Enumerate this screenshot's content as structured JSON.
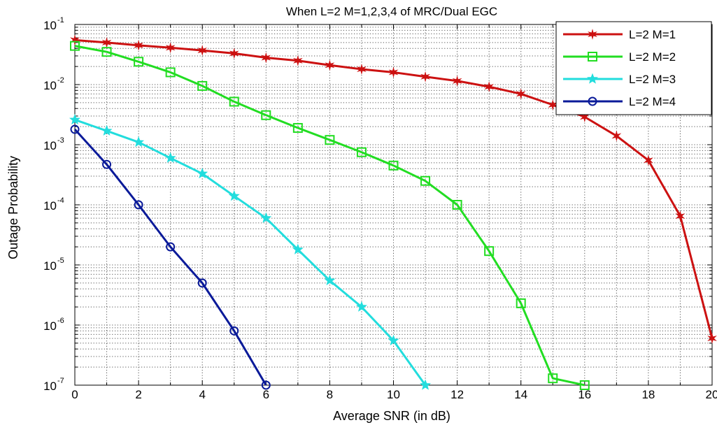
{
  "chart_data": {
    "type": "line",
    "title": "When L=2 M=1,2,3,4 of MRC/Dual EGC",
    "xlabel": "Average SNR (in dB)",
    "ylabel": "Outage Probability",
    "xlim": [
      0,
      20
    ],
    "ylim": [
      1e-07,
      0.1
    ],
    "yscale": "log",
    "grid": true,
    "legend_position": "top-right",
    "x_ticks": [
      0,
      2,
      4,
      6,
      8,
      10,
      12,
      14,
      16,
      18,
      20
    ],
    "y_ticks": [
      {
        "value": 1e-07,
        "base": "10",
        "exp": "-7"
      },
      {
        "value": 1e-06,
        "base": "10",
        "exp": "-6"
      },
      {
        "value": 1e-05,
        "base": "10",
        "exp": "-5"
      },
      {
        "value": 0.0001,
        "base": "10",
        "exp": "-4"
      },
      {
        "value": 0.001,
        "base": "10",
        "exp": "-3"
      },
      {
        "value": 0.01,
        "base": "10",
        "exp": "-2"
      },
      {
        "value": 0.1,
        "base": "10",
        "exp": "-1"
      }
    ],
    "series": [
      {
        "name": "L=2 M=1",
        "color": "#cc1111",
        "marker": "star",
        "x": [
          0,
          1,
          2,
          3,
          4,
          5,
          6,
          7,
          8,
          9,
          10,
          11,
          12,
          13,
          14,
          15,
          16,
          17,
          18,
          19,
          20
        ],
        "y": [
          0.055,
          0.05,
          0.045,
          0.041,
          0.037,
          0.033,
          0.028,
          0.025,
          0.021,
          0.018,
          0.016,
          0.0135,
          0.0115,
          0.0092,
          0.007,
          0.0046,
          0.0029,
          0.0014,
          0.00055,
          6.5e-05,
          6e-07
        ]
      },
      {
        "name": "L=2 M=2",
        "color": "#22dd22",
        "marker": "square",
        "x": [
          0,
          1,
          2,
          3,
          4,
          5,
          6,
          7,
          8,
          9,
          10,
          11,
          12,
          13,
          14,
          15,
          16
        ],
        "y": [
          0.044,
          0.035,
          0.024,
          0.016,
          0.0095,
          0.0052,
          0.0031,
          0.0019,
          0.0012,
          0.00075,
          0.00045,
          0.00025,
          0.0001,
          1.7e-05,
          2.3e-06,
          1.3e-07,
          1e-07
        ]
      },
      {
        "name": "L=2 M=3",
        "color": "#22dddd",
        "marker": "pentagram",
        "x": [
          0,
          1,
          2,
          3,
          4,
          5,
          6,
          7,
          8,
          9,
          10,
          11
        ],
        "y": [
          0.0026,
          0.0017,
          0.0011,
          0.0006,
          0.00033,
          0.00014,
          6e-05,
          1.8e-05,
          5.5e-06,
          2e-06,
          5.5e-07,
          1e-07
        ]
      },
      {
        "name": "L=2 M=4",
        "color": "#0a1a99",
        "marker": "circle",
        "x": [
          0,
          1,
          2,
          3,
          4,
          5,
          6
        ],
        "y": [
          0.0018,
          0.00047,
          0.0001,
          2e-05,
          5e-06,
          8e-07,
          1e-07
        ]
      }
    ]
  }
}
